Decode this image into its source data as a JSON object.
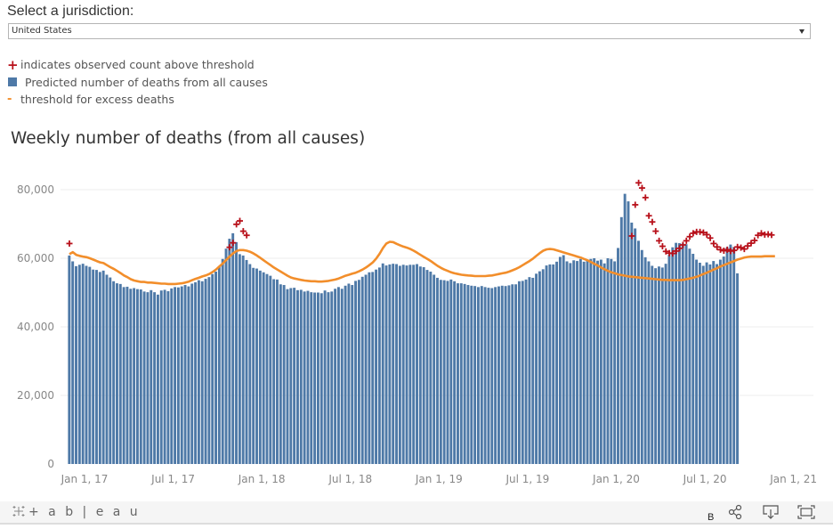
{
  "selector": {
    "label": "Select a jurisdiction:",
    "value": "United States"
  },
  "legend": [
    {
      "symbol": "+",
      "icon": "plus-icon",
      "label": "indicates observed count above threshold",
      "color": "#b8111b"
    },
    {
      "symbol": "square",
      "icon": "square-icon",
      "label": "Predicted number of deaths from all causes",
      "color": "#4e79a7"
    },
    {
      "symbol": "-",
      "icon": "dash-icon",
      "label": "threshold for excess deaths",
      "color": "#f28e2b"
    }
  ],
  "footer": {
    "brand": "+ a b | e a u",
    "b_label": "B"
  },
  "chart_data": {
    "type": "bar",
    "title": "Weekly number of deaths (from all causes)",
    "xlabel": "",
    "ylabel": "",
    "ylim": [
      0,
      80000
    ],
    "yticks": [
      0,
      20000,
      40000,
      60000,
      80000
    ],
    "ytick_labels": [
      "0",
      "20,000",
      "40,000",
      "60,000",
      "80,000"
    ],
    "x_start": "2017-01-01",
    "x_end": "2021-01-01",
    "xtick_labels": [
      "Jan 1, 17",
      "Jul 1, 17",
      "Jan 1, 18",
      "Jul 1, 18",
      "Jan 1, 19",
      "Jul 1, 19",
      "Jan 1, 20",
      "Jul 1, 20",
      "Jan 1, 21"
    ],
    "xtick_weeks": [
      0,
      26,
      52,
      78,
      104,
      130,
      156,
      182,
      208
    ],
    "grid": true,
    "colors": {
      "bar": "#4e79a7",
      "threshold": "#f28e2b",
      "marker": "#b8111b",
      "grid": "#ececec"
    },
    "series": [
      {
        "name": "Predicted number of deaths from all causes",
        "type": "bar",
        "values": [
          60800,
          59100,
          57700,
          58100,
          58400,
          57800,
          57500,
          56700,
          56600,
          56000,
          56400,
          55200,
          54400,
          53300,
          52700,
          52500,
          51600,
          51700,
          51100,
          51300,
          51000,
          50900,
          50300,
          50100,
          50700,
          50100,
          49400,
          50600,
          50800,
          50400,
          51200,
          51600,
          51500,
          51800,
          52200,
          51800,
          52600,
          53000,
          53600,
          53300,
          54000,
          54500,
          55400,
          56100,
          57700,
          59800,
          62800,
          65700,
          67300,
          64700,
          61200,
          60800,
          59500,
          58300,
          57200,
          57000,
          56400,
          55900,
          55400,
          54900,
          53900,
          53800,
          52400,
          52200,
          51000,
          51300,
          51400,
          50700,
          50800,
          50300,
          50500,
          50100,
          50000,
          50000,
          49800,
          50600,
          50100,
          50300,
          51100,
          51600,
          51100,
          52000,
          52600,
          52200,
          53400,
          53700,
          54600,
          55200,
          55900,
          56000,
          56700,
          57300,
          58500,
          57900,
          58200,
          58400,
          58300,
          57800,
          58100,
          57900,
          58100,
          58100,
          58300,
          57600,
          57400,
          56600,
          56100,
          55200,
          54300,
          53700,
          53600,
          53400,
          53800,
          53300,
          52700,
          52700,
          52500,
          52200,
          52000,
          51900,
          51600,
          51900,
          51600,
          51400,
          51300,
          51600,
          51800,
          52000,
          51900,
          52100,
          52400,
          52400,
          53300,
          53400,
          53800,
          54500,
          54300,
          55500,
          56200,
          56800,
          57900,
          58200,
          58200,
          59000,
          60400,
          60900,
          59100,
          58600,
          59400,
          59200,
          59800,
          59000,
          59500,
          59800,
          60000,
          59300,
          59600,
          58500,
          60000,
          59800,
          59100,
          63000,
          72000,
          78800,
          76600,
          70400,
          68700,
          65100,
          62400,
          60300,
          59100,
          57800,
          57100,
          57600,
          57300,
          58400,
          61000,
          63200,
          64500,
          64400,
          64300,
          64100,
          62800,
          61300,
          59600,
          58700,
          57800,
          58800,
          58200,
          59200,
          58300,
          59600,
          60500,
          63200,
          64000,
          63300,
          55600
        ]
      },
      {
        "name": "threshold for excess deaths",
        "type": "line",
        "values": [
          61200,
          61800,
          61000,
          60700,
          60500,
          60300,
          60000,
          59600,
          59200,
          58800,
          58600,
          58000,
          57400,
          56900,
          56300,
          55700,
          55000,
          54500,
          53900,
          53500,
          53300,
          53100,
          53100,
          52900,
          52900,
          52800,
          52700,
          52600,
          52600,
          52500,
          52500,
          52500,
          52600,
          52700,
          52900,
          53200,
          53600,
          54000,
          54300,
          54700,
          55000,
          55400,
          56000,
          56700,
          57600,
          58500,
          59500,
          60500,
          61400,
          62100,
          62400,
          62400,
          62200,
          61900,
          61400,
          60800,
          60100,
          59400,
          58700,
          58000,
          57300,
          56700,
          56100,
          55500,
          54900,
          54400,
          54100,
          53900,
          53700,
          53500,
          53400,
          53300,
          53300,
          53200,
          53200,
          53300,
          53400,
          53600,
          53800,
          54100,
          54500,
          54900,
          55200,
          55500,
          55800,
          56200,
          56700,
          57300,
          58000,
          58800,
          59900,
          61300,
          63000,
          64300,
          64800,
          64700,
          64200,
          63800,
          63400,
          63100,
          62700,
          62200,
          61600,
          61000,
          60400,
          59800,
          59200,
          58500,
          57800,
          57200,
          56700,
          56300,
          55900,
          55600,
          55400,
          55200,
          55100,
          55000,
          54900,
          54800,
          54800,
          54800,
          54800,
          54900,
          55000,
          55200,
          55400,
          55600,
          55800,
          56100,
          56500,
          56900,
          57400,
          58000,
          58600,
          59200,
          59900,
          60700,
          61500,
          62200,
          62600,
          62700,
          62600,
          62300,
          62000,
          61700,
          61400,
          61100,
          60800,
          60500,
          60200,
          59800,
          59400,
          58900,
          58400,
          57900,
          57300,
          56800,
          56300,
          55900,
          55600,
          55300,
          55100,
          54900,
          54700,
          54600,
          54500,
          54400,
          54300,
          54200,
          54100,
          54000,
          53900,
          53800,
          53700,
          53700,
          53600,
          53600,
          53600,
          53600,
          53700,
          53900,
          54100,
          54300,
          54600,
          55000,
          55400,
          55800,
          56200,
          56700,
          57100,
          57600,
          58000,
          58400,
          58800,
          59200,
          59600,
          59900,
          60200,
          60400,
          60500,
          60500,
          60500,
          60500,
          60600,
          60600,
          60600,
          60600
        ]
      },
      {
        "name": "observed count above threshold",
        "type": "scatter",
        "weeks": [
          0,
          47,
          48,
          49,
          50,
          51,
          52,
          165,
          166,
          167,
          168,
          169,
          170,
          171,
          172,
          173,
          174,
          175,
          176,
          177,
          178,
          179,
          180,
          181,
          182,
          183,
          184,
          185,
          186,
          187,
          188,
          189,
          190,
          191,
          192,
          193,
          194,
          195,
          196,
          197,
          198,
          199,
          200,
          201,
          202,
          203,
          204,
          205,
          206
        ],
        "values": [
          64300,
          63200,
          64500,
          69900,
          70900,
          67900,
          66700,
          66500,
          75600,
          82000,
          80500,
          77700,
          72400,
          70600,
          67900,
          65100,
          63500,
          62000,
          61500,
          61400,
          62100,
          62900,
          63900,
          65100,
          66300,
          67300,
          67700,
          67700,
          67500,
          66900,
          65900,
          64300,
          63300,
          62500,
          62200,
          62500,
          62100,
          62300,
          63300,
          63100,
          62700,
          63600,
          64400,
          65200,
          66700,
          67300,
          66900,
          67000,
          66800
        ]
      }
    ]
  }
}
